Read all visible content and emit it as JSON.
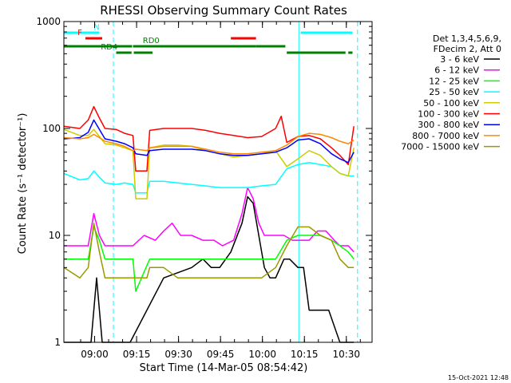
{
  "chart_data": {
    "type": "line",
    "title": "RHESSI Observing Summary Count Rates",
    "xlabel": "Start Time (14-Mar-05 08:54:42)",
    "ylabel": "Count Rate (s⁻¹ detector⁻¹)",
    "x_start": "08:54:42",
    "xlim": [
      -5.7,
      104.5
    ],
    "x_ticks": [
      {
        "value": 5.3,
        "label": "09:00"
      },
      {
        "value": 20.3,
        "label": "09:15"
      },
      {
        "value": 35.3,
        "label": "09:30"
      },
      {
        "value": 50.3,
        "label": "09:45"
      },
      {
        "value": 65.3,
        "label": "10:00"
      },
      {
        "value": 80.3,
        "label": "10:15"
      },
      {
        "value": 95.3,
        "label": "10:30"
      }
    ],
    "y_scale": "log",
    "ylim": [
      1,
      1000
    ],
    "y_ticks": [
      {
        "value": 1,
        "label": "1"
      },
      {
        "value": 10,
        "label": "10"
      },
      {
        "value": 100,
        "label": "100"
      },
      {
        "value": 1000,
        "label": "1000"
      }
    ],
    "grid": false,
    "legend_position": "right",
    "legend_header": [
      "Det 1,3,4,5,6,9,",
      "FDecim 2, Att 0"
    ],
    "series": [
      {
        "name": "3 - 6 keV",
        "color": "#000000",
        "points": [
          [
            -5.7,
            1
          ],
          [
            4,
            1
          ],
          [
            5,
            2
          ],
          [
            6,
            4
          ],
          [
            7,
            2
          ],
          [
            8,
            1
          ],
          [
            12,
            1
          ],
          [
            13,
            1
          ],
          [
            18,
            1
          ],
          [
            30,
            4
          ],
          [
            40,
            5
          ],
          [
            44,
            6
          ],
          [
            47,
            5
          ],
          [
            50,
            5
          ],
          [
            54,
            7
          ],
          [
            58,
            13
          ],
          [
            60,
            23
          ],
          [
            62,
            20
          ],
          [
            64,
            10
          ],
          [
            66,
            5
          ],
          [
            68,
            4
          ],
          [
            70,
            4
          ],
          [
            73,
            6
          ],
          [
            75,
            6
          ],
          [
            78,
            5
          ],
          [
            80,
            5
          ],
          [
            82,
            2
          ],
          [
            86,
            2
          ],
          [
            89,
            2
          ],
          [
            93,
            1
          ],
          [
            95,
            1
          ],
          [
            97,
            1
          ],
          [
            98,
            1
          ]
        ]
      },
      {
        "name": "6 - 12 keV",
        "color": "#ff00ff",
        "points": [
          [
            -5.7,
            8
          ],
          [
            0,
            8
          ],
          [
            3,
            8
          ],
          [
            5,
            16
          ],
          [
            7,
            10
          ],
          [
            9,
            8
          ],
          [
            13,
            8
          ],
          [
            16,
            8
          ],
          [
            19,
            8
          ],
          [
            23,
            10
          ],
          [
            27,
            9
          ],
          [
            30,
            11
          ],
          [
            33,
            13
          ],
          [
            36,
            10
          ],
          [
            40,
            10
          ],
          [
            44,
            9
          ],
          [
            48,
            9
          ],
          [
            51,
            8
          ],
          [
            55,
            9
          ],
          [
            58,
            16
          ],
          [
            60,
            28
          ],
          [
            62,
            22
          ],
          [
            64,
            13
          ],
          [
            66,
            10
          ],
          [
            70,
            10
          ],
          [
            73,
            10
          ],
          [
            76,
            9
          ],
          [
            79,
            9
          ],
          [
            82,
            9
          ],
          [
            85,
            11
          ],
          [
            88,
            11
          ],
          [
            91,
            9
          ],
          [
            93,
            8
          ],
          [
            96,
            8
          ],
          [
            98,
            7
          ]
        ]
      },
      {
        "name": "12 - 25 keV",
        "color": "#00ff00",
        "points": [
          [
            -5.7,
            6
          ],
          [
            0,
            6
          ],
          [
            3,
            6
          ],
          [
            5,
            12
          ],
          [
            7,
            9
          ],
          [
            9,
            6
          ],
          [
            13,
            6
          ],
          [
            16,
            6
          ],
          [
            19,
            6
          ],
          [
            20,
            3
          ],
          [
            25,
            6
          ],
          [
            30,
            6
          ],
          [
            35,
            6
          ],
          [
            40,
            6
          ],
          [
            45,
            6
          ],
          [
            50,
            6
          ],
          [
            55,
            6
          ],
          [
            60,
            6
          ],
          [
            65,
            6
          ],
          [
            70,
            6
          ],
          [
            74,
            9
          ],
          [
            78,
            10
          ],
          [
            82,
            10
          ],
          [
            86,
            10
          ],
          [
            90,
            9
          ],
          [
            93,
            8
          ],
          [
            96,
            7
          ],
          [
            98,
            6
          ]
        ]
      },
      {
        "name": "25 - 50 keV",
        "color": "#00ffff",
        "points": [
          [
            -5.7,
            38
          ],
          [
            0,
            33
          ],
          [
            3,
            34
          ],
          [
            5,
            40
          ],
          [
            7,
            35
          ],
          [
            9,
            31
          ],
          [
            13,
            30
          ],
          [
            16,
            31
          ],
          [
            19,
            30
          ],
          [
            20,
            25
          ],
          [
            24,
            25
          ],
          [
            25,
            32
          ],
          [
            30,
            32
          ],
          [
            35,
            31
          ],
          [
            40,
            30
          ],
          [
            45,
            29
          ],
          [
            50,
            28
          ],
          [
            55,
            28
          ],
          [
            60,
            28
          ],
          [
            65,
            29
          ],
          [
            70,
            30
          ],
          [
            74,
            42
          ],
          [
            78,
            46
          ],
          [
            82,
            48
          ],
          [
            86,
            46
          ],
          [
            90,
            44
          ],
          [
            93,
            38
          ],
          [
            96,
            36
          ],
          [
            98,
            36
          ]
        ]
      },
      {
        "name": "50 - 100 keV",
        "color": "#cccc00",
        "points": [
          [
            -5.7,
            98
          ],
          [
            0,
            86
          ],
          [
            3,
            86
          ],
          [
            5,
            98
          ],
          [
            7,
            84
          ],
          [
            9,
            72
          ],
          [
            13,
            70
          ],
          [
            16,
            66
          ],
          [
            19,
            62
          ],
          [
            20,
            22
          ],
          [
            24,
            22
          ],
          [
            25,
            66
          ],
          [
            30,
            70
          ],
          [
            35,
            70
          ],
          [
            40,
            68
          ],
          [
            45,
            62
          ],
          [
            50,
            58
          ],
          [
            55,
            54
          ],
          [
            60,
            56
          ],
          [
            65,
            58
          ],
          [
            70,
            62
          ],
          [
            74,
            44
          ],
          [
            78,
            52
          ],
          [
            82,
            62
          ],
          [
            86,
            56
          ],
          [
            90,
            44
          ],
          [
            93,
            38
          ],
          [
            96,
            36
          ],
          [
            98,
            66
          ]
        ]
      },
      {
        "name": "100 - 300 keV",
        "color": "#ff0000",
        "points": [
          [
            -5.7,
            105
          ],
          [
            0,
            100
          ],
          [
            3,
            120
          ],
          [
            5,
            160
          ],
          [
            7,
            125
          ],
          [
            9,
            100
          ],
          [
            13,
            98
          ],
          [
            16,
            90
          ],
          [
            19,
            86
          ],
          [
            20,
            40
          ],
          [
            24,
            40
          ],
          [
            25,
            96
          ],
          [
            30,
            100
          ],
          [
            35,
            100
          ],
          [
            40,
            100
          ],
          [
            45,
            96
          ],
          [
            50,
            90
          ],
          [
            55,
            86
          ],
          [
            60,
            82
          ],
          [
            65,
            84
          ],
          [
            70,
            100
          ],
          [
            72,
            130
          ],
          [
            74,
            74
          ],
          [
            78,
            84
          ],
          [
            82,
            86
          ],
          [
            86,
            80
          ],
          [
            90,
            66
          ],
          [
            93,
            56
          ],
          [
            96,
            46
          ],
          [
            98,
            105
          ]
        ]
      },
      {
        "name": "300 - 800 keV",
        "color": "#0000ff",
        "points": [
          [
            -5.7,
            80
          ],
          [
            0,
            82
          ],
          [
            3,
            92
          ],
          [
            5,
            120
          ],
          [
            7,
            98
          ],
          [
            9,
            80
          ],
          [
            13,
            76
          ],
          [
            16,
            72
          ],
          [
            19,
            66
          ],
          [
            20,
            58
          ],
          [
            24,
            56
          ],
          [
            25,
            62
          ],
          [
            30,
            64
          ],
          [
            35,
            64
          ],
          [
            40,
            64
          ],
          [
            45,
            62
          ],
          [
            50,
            58
          ],
          [
            55,
            56
          ],
          [
            60,
            56
          ],
          [
            65,
            58
          ],
          [
            70,
            60
          ],
          [
            74,
            66
          ],
          [
            78,
            78
          ],
          [
            82,
            80
          ],
          [
            86,
            72
          ],
          [
            90,
            58
          ],
          [
            93,
            52
          ],
          [
            96,
            48
          ],
          [
            98,
            60
          ]
        ]
      },
      {
        "name": "800 - 7000 keV",
        "color": "#ff8800",
        "points": [
          [
            -5.7,
            82
          ],
          [
            0,
            80
          ],
          [
            3,
            82
          ],
          [
            5,
            88
          ],
          [
            7,
            82
          ],
          [
            9,
            76
          ],
          [
            13,
            72
          ],
          [
            16,
            68
          ],
          [
            19,
            62
          ],
          [
            20,
            64
          ],
          [
            24,
            62
          ],
          [
            25,
            66
          ],
          [
            30,
            68
          ],
          [
            35,
            68
          ],
          [
            40,
            68
          ],
          [
            45,
            64
          ],
          [
            50,
            60
          ],
          [
            55,
            58
          ],
          [
            60,
            58
          ],
          [
            65,
            60
          ],
          [
            70,
            62
          ],
          [
            74,
            70
          ],
          [
            78,
            84
          ],
          [
            82,
            90
          ],
          [
            86,
            88
          ],
          [
            90,
            82
          ],
          [
            93,
            76
          ],
          [
            96,
            72
          ],
          [
            98,
            78
          ]
        ]
      },
      {
        "name": "7000 - 15000 keV",
        "color": "#999900",
        "points": [
          [
            -5.7,
            5
          ],
          [
            0,
            4
          ],
          [
            3,
            5
          ],
          [
            5,
            13
          ],
          [
            7,
            7
          ],
          [
            9,
            4
          ],
          [
            13,
            4
          ],
          [
            16,
            4
          ],
          [
            19,
            4
          ],
          [
            20,
            4
          ],
          [
            24,
            4
          ],
          [
            25,
            5
          ],
          [
            30,
            5
          ],
          [
            35,
            4
          ],
          [
            40,
            4
          ],
          [
            45,
            4
          ],
          [
            50,
            4
          ],
          [
            55,
            4
          ],
          [
            60,
            4
          ],
          [
            65,
            4
          ],
          [
            70,
            5
          ],
          [
            74,
            8
          ],
          [
            78,
            12
          ],
          [
            82,
            12
          ],
          [
            86,
            10
          ],
          [
            90,
            9
          ],
          [
            93,
            6
          ],
          [
            96,
            5
          ],
          [
            98,
            5
          ]
        ]
      }
    ],
    "status_bars": [
      {
        "name": "N",
        "color": "#00ffff",
        "level": 1,
        "label_at": 6,
        "segments": [
          [
            -5.7,
            7
          ],
          [
            79,
            97.5
          ]
        ]
      },
      {
        "name": "F",
        "color": "#ff0000",
        "level": 2,
        "label_at": 0,
        "segments": [
          [
            2,
            8
          ],
          [
            54,
            63
          ]
        ]
      },
      {
        "name": "RD0",
        "color": "#008000",
        "level": 3,
        "label_at": 25.5,
        "segments": [
          [
            -5.7,
            18.7
          ],
          [
            19,
            63
          ],
          [
            63,
            73.5
          ]
        ]
      },
      {
        "name": "RD4",
        "color": "#008000",
        "level": 4,
        "label_at": 10.5,
        "segments": [
          [
            13,
            18.5
          ],
          [
            19.3,
            26
          ],
          [
            74,
            95
          ],
          [
            96,
            97.5
          ]
        ]
      }
    ],
    "vertical_lines": [
      {
        "x": -5.7,
        "style": "solid"
      },
      {
        "x": 12,
        "style": "dashed"
      },
      {
        "x": 78.3,
        "style": "solid"
      },
      {
        "x": 99.3,
        "style": "dashed"
      }
    ]
  },
  "footer": {
    "date_stamp": "15-Oct-2021 12:48"
  }
}
